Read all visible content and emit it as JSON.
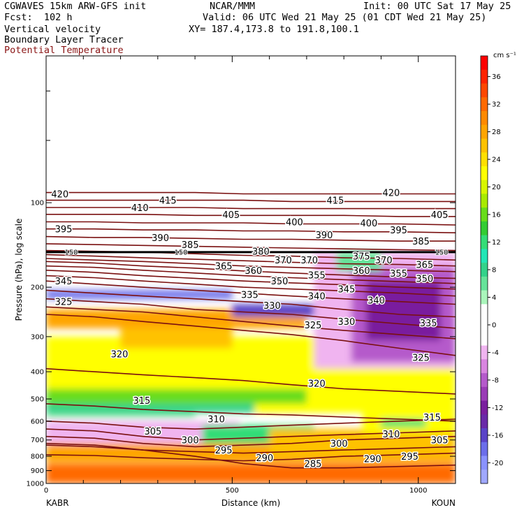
{
  "header": {
    "line1_left": "CGWAVES 15km ARW-GFS init",
    "line1_mid": "NCAR/MMM",
    "line1_right": "Init: 00 UTC Sat 17 May 25",
    "line2_left": "Fcst:  102 h",
    "line2_right": "Valid: 06 UTC Wed 21 May 25 (01 CDT Wed 21 May 25)",
    "field1": "Vertical velocity",
    "field2": "Boundary Layer Tracer",
    "field3": "Potential Temperature",
    "xy": "XY= 187.4,173.8 to 191.8,100.1"
  },
  "colors": {
    "theta": "#7a1010",
    "tracer": "#000000"
  },
  "chart_data": {
    "type": "heatmap",
    "title": "",
    "xlabel": "Distance (km)",
    "ylabel": "Pressure (hPa), log scale",
    "xlim": [
      0,
      1100
    ],
    "ylim": [
      1000,
      30
    ],
    "x_ticks": [
      0,
      500,
      1000
    ],
    "y_ticks": [
      100,
      200,
      300,
      400,
      500,
      600,
      700,
      800,
      900,
      1000
    ],
    "endpoints": {
      "left": "KABR",
      "right": "KOUN"
    },
    "colorbar": {
      "unit": "cm s⁻¹",
      "ticks": [
        36,
        32,
        28,
        24,
        20,
        16,
        12,
        8,
        4,
        0,
        -4,
        -8,
        -12,
        -16,
        -20
      ],
      "levels": [
        {
          "v": 38,
          "c": "#ff0000"
        },
        {
          "v": 36,
          "c": "#ff2400"
        },
        {
          "v": 34,
          "c": "#ff4800"
        },
        {
          "v": 32,
          "c": "#ff6a00"
        },
        {
          "v": 30,
          "c": "#ff8a00"
        },
        {
          "v": 28,
          "c": "#ffa500"
        },
        {
          "v": 26,
          "c": "#ffc200"
        },
        {
          "v": 24,
          "c": "#ffe000"
        },
        {
          "v": 22,
          "c": "#ffff00"
        },
        {
          "v": 20,
          "c": "#d8f500"
        },
        {
          "v": 18,
          "c": "#a8ea00"
        },
        {
          "v": 16,
          "c": "#68dd1a"
        },
        {
          "v": 14,
          "c": "#33cc33"
        },
        {
          "v": 12,
          "c": "#33dd77"
        },
        {
          "v": 10,
          "c": "#22e6b6"
        },
        {
          "v": 8,
          "c": "#33d28a"
        },
        {
          "v": 6,
          "c": "#66e39a"
        },
        {
          "v": 4,
          "c": "#aaf5bb"
        },
        {
          "v": 2,
          "c": "#ffffff"
        },
        {
          "v": 0,
          "c": "#ffffff"
        },
        {
          "v": -2,
          "c": "#ffffff"
        },
        {
          "v": -4,
          "c": "#f0b4f0"
        },
        {
          "v": -6,
          "c": "#d985e0"
        },
        {
          "v": -8,
          "c": "#b55acb"
        },
        {
          "v": -10,
          "c": "#9a3bb6"
        },
        {
          "v": -12,
          "c": "#7a1f9e"
        },
        {
          "v": -14,
          "c": "#6a2aa8"
        },
        {
          "v": -16,
          "c": "#5a44c8"
        },
        {
          "v": -18,
          "c": "#6c6eea"
        },
        {
          "v": -20,
          "c": "#8a92ff"
        },
        {
          "v": -22,
          "c": "#a0a8ff"
        }
      ]
    },
    "tracer_level_hPa": 150,
    "tracer_label": "150",
    "theta_contours": [
      {
        "theta": 285,
        "y": [
          720,
          730,
          760,
          800,
          850,
          880,
          880,
          870,
          860
        ]
      },
      {
        "theta": 290,
        "y": [
          790,
          795,
          810,
          820,
          830,
          820,
          800,
          790,
          780
        ]
      },
      {
        "theta": 295,
        "y": [
          730,
          740,
          760,
          770,
          780,
          770,
          760,
          750,
          740
        ]
      },
      {
        "theta": 300,
        "y": [
          680,
          690,
          720,
          740,
          730,
          720,
          700,
          690,
          680
        ]
      },
      {
        "theta": 305,
        "y": [
          640,
          650,
          680,
          700,
          690,
          680,
          670,
          660,
          650
        ]
      },
      {
        "theta": 310,
        "y": [
          600,
          610,
          630,
          640,
          630,
          620,
          610,
          600,
          590
        ]
      },
      {
        "theta": 315,
        "y": [
          520,
          530,
          545,
          555,
          565,
          570,
          580,
          590,
          600
        ]
      },
      {
        "theta": 320,
        "y": [
          390,
          400,
          410,
          420,
          430,
          445,
          460,
          470,
          480
        ]
      },
      {
        "theta": 325,
        "y": [
          250,
          255,
          265,
          275,
          285,
          295,
          310,
          330,
          350
        ]
      },
      {
        "theta": 330,
        "y": [
          235,
          240,
          245,
          255,
          265,
          275,
          285,
          295,
          305
        ]
      },
      {
        "theta": 335,
        "y": [
          220,
          225,
          230,
          240,
          245,
          250,
          260,
          270,
          280
        ]
      },
      {
        "theta": 340,
        "y": [
          205,
          210,
          215,
          220,
          225,
          230,
          240,
          250,
          255
        ]
      },
      {
        "theta": 345,
        "y": [
          190,
          195,
          200,
          205,
          210,
          215,
          220,
          225,
          230
        ]
      },
      {
        "theta": 350,
        "y": [
          182,
          185,
          190,
          195,
          200,
          203,
          206,
          210,
          215
        ]
      },
      {
        "theta": 355,
        "y": [
          174,
          177,
          182,
          186,
          190,
          193,
          196,
          200,
          203
        ]
      },
      {
        "theta": 360,
        "y": [
          168,
          170,
          174,
          178,
          182,
          185,
          188,
          191,
          194
        ]
      },
      {
        "theta": 365,
        "y": [
          162,
          164,
          168,
          171,
          175,
          178,
          181,
          184,
          186
        ]
      },
      {
        "theta": 370,
        "y": [
          158,
          160,
          162,
          165,
          168,
          170,
          172,
          174,
          176
        ]
      },
      {
        "theta": 375,
        "y": [
          153,
          155,
          157,
          159,
          161,
          163,
          165,
          166,
          168
        ]
      },
      {
        "theta": 380,
        "y": [
          148,
          149,
          150,
          152,
          154,
          155,
          157,
          158,
          160
        ]
      },
      {
        "theta": 385,
        "y": [
          140,
          141,
          142,
          143,
          144,
          145,
          146,
          147,
          148
        ]
      },
      {
        "theta": 390,
        "y": [
          132,
          133,
          133,
          134,
          135,
          135,
          136,
          137,
          137
        ]
      },
      {
        "theta": 395,
        "y": [
          124,
          124,
          125,
          125,
          126,
          126,
          127,
          127,
          128
        ]
      },
      {
        "theta": 400,
        "y": [
          117,
          117,
          118,
          118,
          118,
          119,
          119,
          119,
          120
        ]
      },
      {
        "theta": 405,
        "y": [
          110,
          110,
          110,
          111,
          111,
          111,
          111,
          112,
          112
        ]
      },
      {
        "theta": 410,
        "y": [
          104,
          104,
          104,
          104,
          105,
          105,
          105,
          105,
          105
        ]
      },
      {
        "theta": 415,
        "y": [
          98,
          98,
          98,
          98,
          98,
          99,
          99,
          99,
          99
        ]
      },
      {
        "theta": 420,
        "y": [
          92,
          92,
          92,
          92,
          93,
          93,
          93,
          93,
          93
        ]
      }
    ],
    "theta_x": [
      0,
      130,
      260,
      400,
      530,
      660,
      800,
      950,
      1100
    ],
    "theta_labels": [
      {
        "text": "420",
        "x": 10,
        "p": 93
      },
      {
        "text": "410",
        "x": 225,
        "p": 104
      },
      {
        "text": "415",
        "x": 300,
        "p": 98
      },
      {
        "text": "405",
        "x": 470,
        "p": 110
      },
      {
        "text": "400",
        "x": 640,
        "p": 117
      },
      {
        "text": "415",
        "x": 750,
        "p": 98
      },
      {
        "text": "420",
        "x": 900,
        "p": 92
      },
      {
        "text": "405",
        "x": 1030,
        "p": 110
      },
      {
        "text": "395",
        "x": 20,
        "p": 124
      },
      {
        "text": "390",
        "x": 280,
        "p": 133
      },
      {
        "text": "385",
        "x": 360,
        "p": 141
      },
      {
        "text": "400",
        "x": 840,
        "p": 118
      },
      {
        "text": "395",
        "x": 920,
        "p": 125
      },
      {
        "text": "390",
        "x": 720,
        "p": 130
      },
      {
        "text": "385",
        "x": 980,
        "p": 137
      },
      {
        "text": "380",
        "x": 550,
        "p": 149
      },
      {
        "text": "375",
        "x": 820,
        "p": 155
      },
      {
        "text": "370",
        "x": 610,
        "p": 160
      },
      {
        "text": "370",
        "x": 680,
        "p": 160
      },
      {
        "text": "370",
        "x": 880,
        "p": 160
      },
      {
        "text": "365",
        "x": 450,
        "p": 168
      },
      {
        "text": "365",
        "x": 990,
        "p": 166
      },
      {
        "text": "360",
        "x": 530,
        "p": 174
      },
      {
        "text": "360",
        "x": 820,
        "p": 174
      },
      {
        "text": "355",
        "x": 700,
        "p": 181
      },
      {
        "text": "355",
        "x": 920,
        "p": 178
      },
      {
        "text": "350",
        "x": 600,
        "p": 190
      },
      {
        "text": "350",
        "x": 990,
        "p": 186
      },
      {
        "text": "345",
        "x": 20,
        "p": 190
      },
      {
        "text": "345",
        "x": 780,
        "p": 203
      },
      {
        "text": "340",
        "x": 700,
        "p": 215
      },
      {
        "text": "340",
        "x": 860,
        "p": 222
      },
      {
        "text": "335",
        "x": 520,
        "p": 212
      },
      {
        "text": "335",
        "x": 1000,
        "p": 268
      },
      {
        "text": "330",
        "x": 580,
        "p": 232
      },
      {
        "text": "330",
        "x": 780,
        "p": 265
      },
      {
        "text": "325",
        "x": 20,
        "p": 225
      },
      {
        "text": "325",
        "x": 690,
        "p": 272
      },
      {
        "text": "325",
        "x": 980,
        "p": 355
      },
      {
        "text": "320",
        "x": 170,
        "p": 345
      },
      {
        "text": "320",
        "x": 700,
        "p": 440
      },
      {
        "text": "315",
        "x": 230,
        "p": 505
      },
      {
        "text": "315",
        "x": 1010,
        "p": 580
      },
      {
        "text": "310",
        "x": 430,
        "p": 588
      },
      {
        "text": "310",
        "x": 900,
        "p": 665
      },
      {
        "text": "305",
        "x": 260,
        "p": 650
      },
      {
        "text": "305",
        "x": 1030,
        "p": 700
      },
      {
        "text": "300",
        "x": 360,
        "p": 700
      },
      {
        "text": "300",
        "x": 760,
        "p": 720
      },
      {
        "text": "295",
        "x": 450,
        "p": 760
      },
      {
        "text": "295",
        "x": 950,
        "p": 800
      },
      {
        "text": "290",
        "x": 560,
        "p": 810
      },
      {
        "text": "290",
        "x": 850,
        "p": 815
      },
      {
        "text": "285",
        "x": 690,
        "p": 850
      }
    ],
    "w_blobs": [
      {
        "x": 0,
        "p": 300,
        "w": 1100,
        "h": 260,
        "v": 22
      },
      {
        "x": 0,
        "p": 240,
        "w": 700,
        "h": 40,
        "v": 28
      },
      {
        "x": 200,
        "p": 280,
        "w": 300,
        "h": 50,
        "v": 26
      },
      {
        "x": 0,
        "p": 460,
        "w": 700,
        "h": 60,
        "v": 16
      },
      {
        "x": 0,
        "p": 520,
        "w": 560,
        "h": 40,
        "v": 8
      },
      {
        "x": 0,
        "p": 560,
        "w": 400,
        "h": 20,
        "v": 6
      },
      {
        "x": 0,
        "p": 600,
        "w": 520,
        "h": 120,
        "v": -4
      },
      {
        "x": 0,
        "p": 720,
        "w": 1100,
        "h": 120,
        "v": 28
      },
      {
        "x": 0,
        "p": 850,
        "w": 1100,
        "h": 150,
        "v": 32
      },
      {
        "x": 420,
        "p": 620,
        "w": 300,
        "h": 100,
        "v": 12
      },
      {
        "x": 600,
        "p": 640,
        "w": 500,
        "h": 160,
        "v": 26
      },
      {
        "x": 850,
        "p": 560,
        "w": 250,
        "h": 100,
        "v": 22
      },
      {
        "x": 900,
        "p": 590,
        "w": 120,
        "h": 40,
        "v": 12
      },
      {
        "x": 0,
        "p": 205,
        "w": 500,
        "h": 15,
        "v": -18
      },
      {
        "x": 500,
        "p": 230,
        "w": 600,
        "h": 25,
        "v": -16
      },
      {
        "x": 720,
        "p": 150,
        "w": 380,
        "h": 240,
        "v": -4
      },
      {
        "x": 820,
        "p": 170,
        "w": 280,
        "h": 200,
        "v": -8
      },
      {
        "x": 860,
        "p": 190,
        "w": 200,
        "h": 120,
        "v": -12
      },
      {
        "x": 780,
        "p": 150,
        "w": 120,
        "h": 25,
        "v": 6
      }
    ]
  }
}
